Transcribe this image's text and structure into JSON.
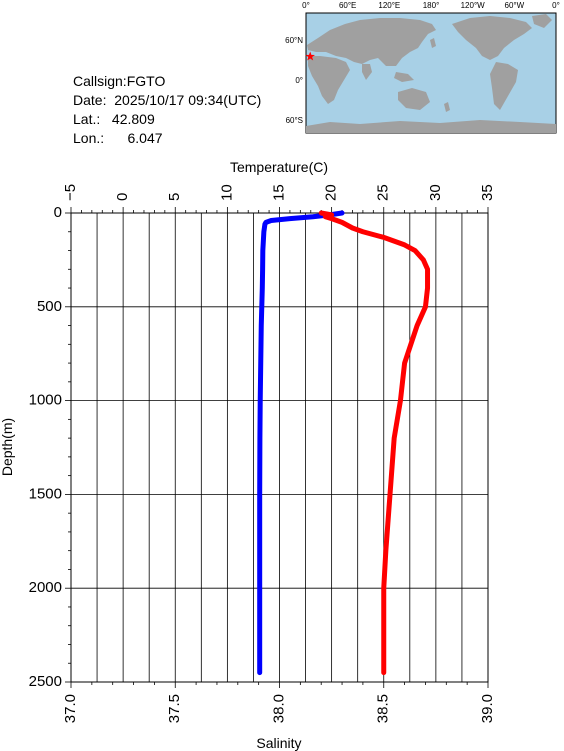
{
  "station": {
    "callsign_label": "Callsign:",
    "callsign": "FGTO",
    "date_label": "Date:",
    "date": "2025/10/17 09:34(UTC)",
    "lat_label": "Lat.:",
    "lat": "42.809",
    "lon_label": "Lon.:",
    "lon": "6.047"
  },
  "map": {
    "top_labels": [
      "0°",
      "60°E",
      "120°E",
      "180°",
      "120°W",
      "60°W",
      "0°"
    ],
    "lat_labels": [
      "60°N",
      "0°",
      "60°S"
    ],
    "marker_lat": 42.809,
    "marker_lon": 6.047,
    "ocean_color": "#a8d0e6",
    "land_color": "#a0a0a0",
    "marker_color": "#ff0000"
  },
  "chart_data": {
    "type": "line",
    "ylabel": "Depth(m)",
    "top_axis_label": "Temperature(C)",
    "bottom_axis_label": "Salinity",
    "y_ticks": [
      "0",
      "500",
      "1000",
      "1500",
      "2000",
      "2500"
    ],
    "temperature_ticks": [
      "−5",
      "0",
      "5",
      "10",
      "15",
      "20",
      "25",
      "30",
      "35"
    ],
    "salinity_ticks": [
      "37.0",
      "37.5",
      "38.0",
      "38.5",
      "39.0"
    ],
    "ylim": [
      0,
      2500
    ],
    "temperature_range": [
      -5,
      35
    ],
    "salinity_range": [
      37.0,
      39.0
    ],
    "grid": true,
    "series": [
      {
        "quantity": "temperature",
        "color": "#0000ff",
        "depth": [
          0,
          10,
          20,
          30,
          40,
          50,
          60,
          80,
          100,
          150,
          200,
          300,
          400,
          500,
          600,
          800,
          1000,
          1200,
          1500,
          2000,
          2450
        ],
        "values": [
          21.0,
          19.8,
          18.2,
          16.0,
          14.2,
          13.7,
          13.6,
          13.55,
          13.5,
          13.45,
          13.4,
          13.38,
          13.35,
          13.3,
          13.25,
          13.2,
          13.15,
          13.12,
          13.1,
          13.1,
          13.1
        ]
      },
      {
        "quantity": "salinity",
        "color": "#ff0000",
        "depth": [
          0,
          10,
          20,
          30,
          50,
          80,
          100,
          130,
          150,
          170,
          200,
          250,
          300,
          400,
          500,
          600,
          700,
          800,
          1000,
          1200,
          1500,
          1800,
          2000,
          2450
        ],
        "values": [
          38.2,
          38.25,
          38.22,
          38.25,
          38.3,
          38.35,
          38.4,
          38.5,
          38.55,
          38.6,
          38.65,
          38.69,
          38.71,
          38.71,
          38.7,
          38.66,
          38.63,
          38.6,
          38.58,
          38.55,
          38.53,
          38.51,
          38.5,
          38.5
        ]
      }
    ]
  }
}
